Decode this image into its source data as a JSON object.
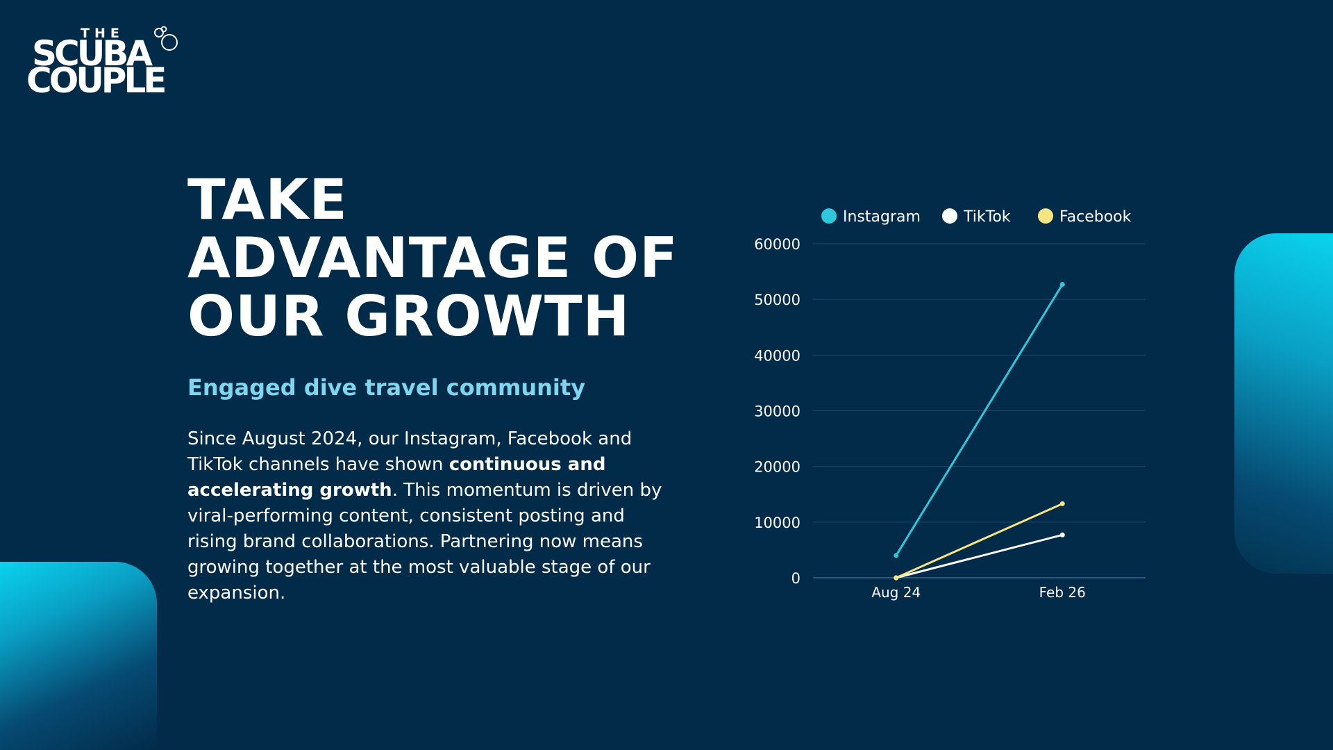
{
  "logo": {
    "line1": "THE",
    "line2": "SCUBA",
    "line3": "COUPLE"
  },
  "headline": {
    "line1": "TAKE",
    "line2": "ADVANTAGE OF",
    "line3": "OUR GROWTH"
  },
  "subheading": "Engaged dive travel community",
  "body": {
    "part1": "Since August 2024, our Instagram, Facebook and TikTok channels have shown ",
    "bold": "continuous and accelerating growth",
    "part2": ". This momentum is driven by viral-performing content, consistent posting and rising brand collaborations. Partnering now means growing together at the most valuable stage of our expansion."
  },
  "colors": {
    "background": "#022b4a",
    "accent": "#0ad3ee",
    "subheading": "#7fd6ee",
    "instagram": "#2ec8dc",
    "tiktok": "#ffffff",
    "facebook": "#f5e680"
  },
  "chart_data": {
    "type": "line",
    "categories": [
      "Aug 24",
      "Feb 26"
    ],
    "series": [
      {
        "name": "Instagram",
        "values": [
          4000,
          52700
        ],
        "color": "#2ec8dc"
      },
      {
        "name": "TikTok",
        "values": [
          0,
          7700
        ],
        "color": "#ffffff"
      },
      {
        "name": "Facebook",
        "values": [
          0,
          13300
        ],
        "color": "#f5e680"
      }
    ],
    "ylim": [
      0,
      60000
    ],
    "yticks": [
      0,
      10000,
      20000,
      30000,
      40000,
      50000,
      60000
    ],
    "grid": true,
    "legend": "top"
  }
}
